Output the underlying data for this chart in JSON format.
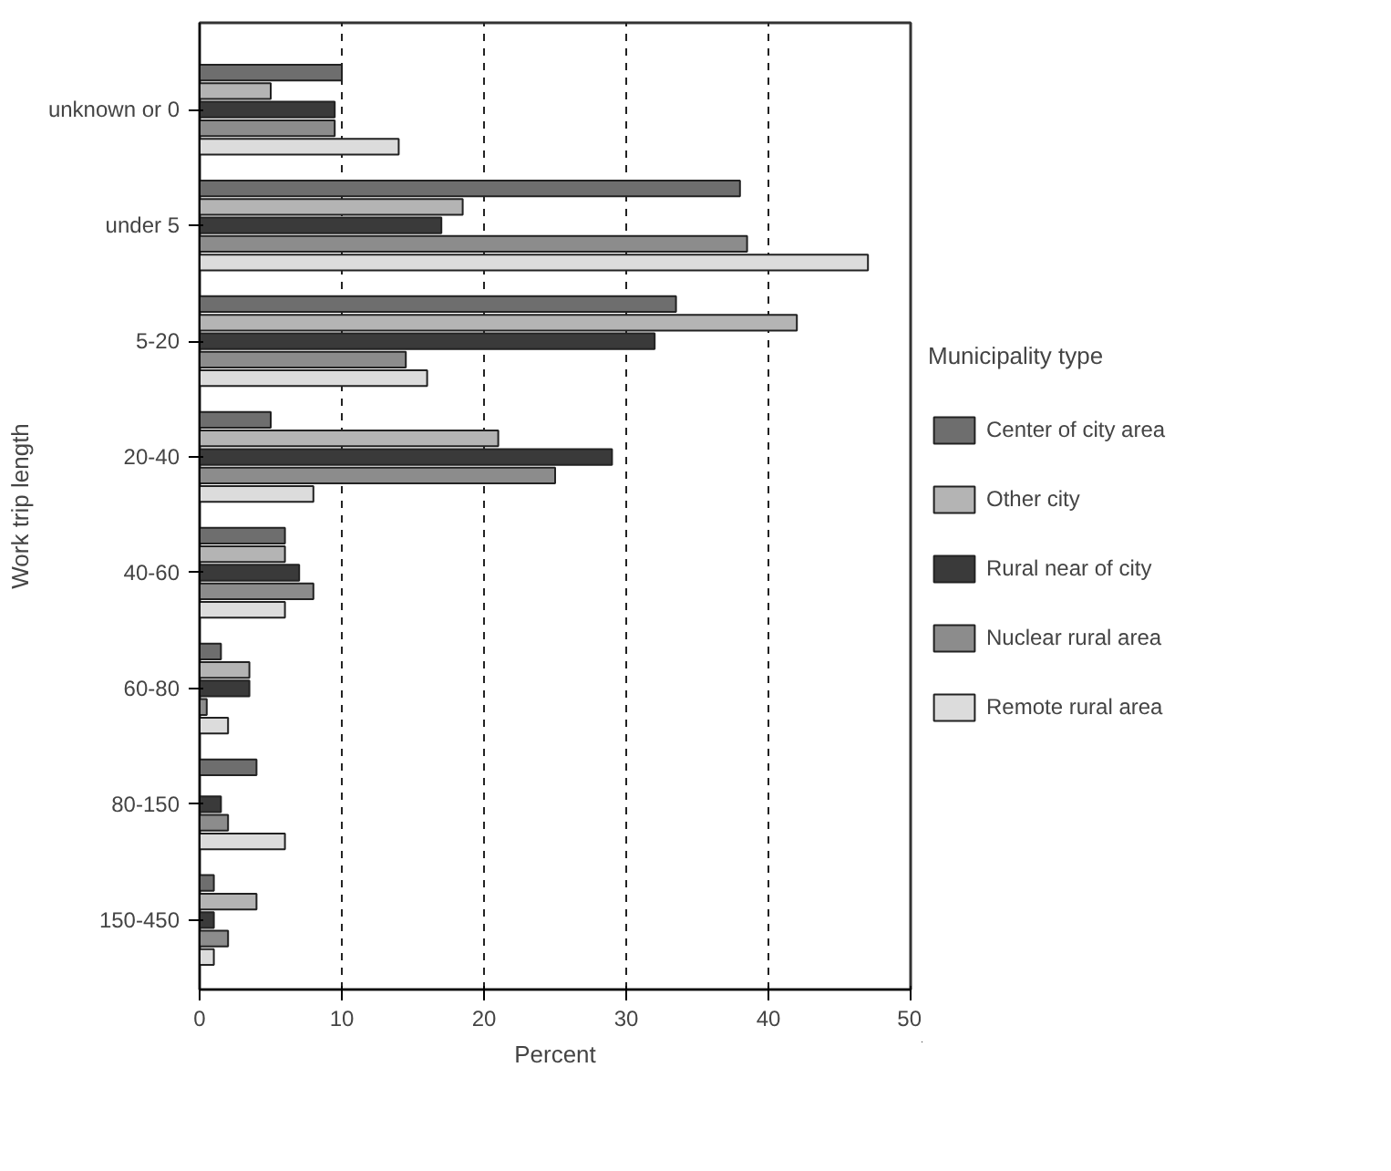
{
  "chart_data": {
    "type": "bar",
    "orientation": "horizontal",
    "xlabel": "Percent",
    "ylabel": "Work trip length",
    "legend_title": "Municipality type",
    "categories": [
      "unknown or 0",
      "under 5",
      "5-20",
      "20-40",
      "40-60",
      "60-80",
      "80-150",
      "150-450"
    ],
    "series": [
      {
        "name": "Center of city area",
        "color": "#6e6e6e",
        "values": [
          10,
          38,
          33.5,
          5,
          6,
          1.5,
          4,
          1
        ]
      },
      {
        "name": "Other city",
        "color": "#b4b4b4",
        "values": [
          5,
          18.5,
          42,
          21,
          6,
          3.5,
          null,
          4
        ]
      },
      {
        "name": "Rural near of city",
        "color": "#3a3a3a",
        "values": [
          9.5,
          17,
          32,
          29,
          7,
          3.5,
          1.5,
          1
        ]
      },
      {
        "name": "Nuclear rural area",
        "color": "#8c8c8c",
        "values": [
          9.5,
          38.5,
          14.5,
          25,
          8,
          0.5,
          2,
          2
        ]
      },
      {
        "name": "Remote rural area",
        "color": "#dcdcdc",
        "values": [
          14,
          47,
          16,
          8,
          6,
          2,
          6,
          1
        ]
      }
    ],
    "xlim": [
      0,
      50
    ],
    "xticks": [
      0,
      10,
      20,
      30,
      40,
      50
    ],
    "grid": "x",
    "legend": "right"
  }
}
